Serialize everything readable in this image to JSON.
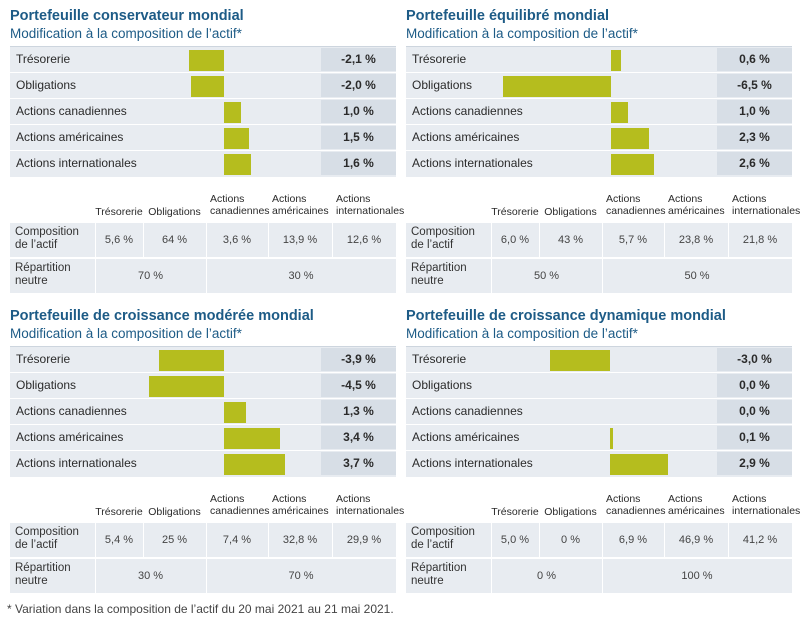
{
  "footnote": "* Variation dans la composition de l’actif du 20 mai 2021 au 21 mai 2021.",
  "colors": {
    "bar": "#b5bd1e",
    "title": "#1d5b86",
    "panel_bg": "#e8ecf1",
    "value_bg": "#d7dee6"
  },
  "table_headers": {
    "tresorerie": "Trésorerie",
    "obligations": "Obligations",
    "act_can": [
      "Actions",
      "canadiennes"
    ],
    "act_am": [
      "Actions",
      "américaines"
    ],
    "act_int": [
      "Actions",
      "internationales"
    ]
  },
  "row_labels": {
    "composition": [
      "Composition",
      "de l’actif"
    ],
    "neutre": [
      "Répartition",
      "neutre"
    ]
  },
  "chart_data": [
    {
      "type": "bar",
      "title": "Portefeuille conservateur mondial",
      "subtitle": "Modification à la composition de l’actif*",
      "categories": [
        "Trésorerie",
        "Obligations",
        "Actions canadiennes",
        "Actions américaines",
        "Actions internationales"
      ],
      "values": [
        -2.1,
        -2.0,
        1.0,
        1.5,
        1.6
      ],
      "value_labels": [
        "-2,1 %",
        "-2,0 %",
        "1,0 %",
        "1,5 %",
        "1,6 %"
      ],
      "composition": [
        "5,6 %",
        "64 %",
        "3,6 %",
        "13,9 %",
        "12,6 %"
      ],
      "neutral": [
        "70 %",
        "30 %"
      ]
    },
    {
      "type": "bar",
      "title": "Portefeuille équilibré mondial",
      "subtitle": "Modification à la composition de l’actif*",
      "categories": [
        "Trésorerie",
        "Obligations",
        "Actions canadiennes",
        "Actions américaines",
        "Actions internationales"
      ],
      "values": [
        0.6,
        -6.5,
        1.0,
        2.3,
        2.6
      ],
      "value_labels": [
        "0,6 %",
        "-6,5 %",
        "1,0 %",
        "2,3 %",
        "2,6 %"
      ],
      "composition": [
        "6,0 %",
        "43 %",
        "5,7 %",
        "23,8 %",
        "21,8 %"
      ],
      "neutral": [
        "50 %",
        "50 %"
      ]
    },
    {
      "type": "bar",
      "title": "Portefeuille de croissance modérée mondial",
      "subtitle": "Modification à la composition de l’actif*",
      "categories": [
        "Trésorerie",
        "Obligations",
        "Actions canadiennes",
        "Actions américaines",
        "Actions internationales"
      ],
      "values": [
        -3.9,
        -4.5,
        1.3,
        3.4,
        3.7
      ],
      "value_labels": [
        "-3,9 %",
        "-4,5 %",
        "1,3 %",
        "3,4 %",
        "3,7 %"
      ],
      "composition": [
        "5,4 %",
        "25 %",
        "7,4 %",
        "32,8 %",
        "29,9 %"
      ],
      "neutral": [
        "30 %",
        "70 %"
      ]
    },
    {
      "type": "bar",
      "title": "Portefeuille de croissance dynamique mondial",
      "subtitle": "Modification à la composition de l’actif*",
      "categories": [
        "Trésorerie",
        "Obligations",
        "Actions canadiennes",
        "Actions américaines",
        "Actions internationales"
      ],
      "values": [
        -3.0,
        0.0,
        0.0,
        0.1,
        2.9
      ],
      "value_labels": [
        "-3,0 %",
        "0,0 %",
        "0,0 %",
        "0,1 %",
        "2,9 %"
      ],
      "composition": [
        "5,0 %",
        "0 %",
        "6,9 %",
        "46,9 %",
        "41,2 %"
      ],
      "neutral": [
        "0 %",
        "100 %"
      ]
    }
  ]
}
